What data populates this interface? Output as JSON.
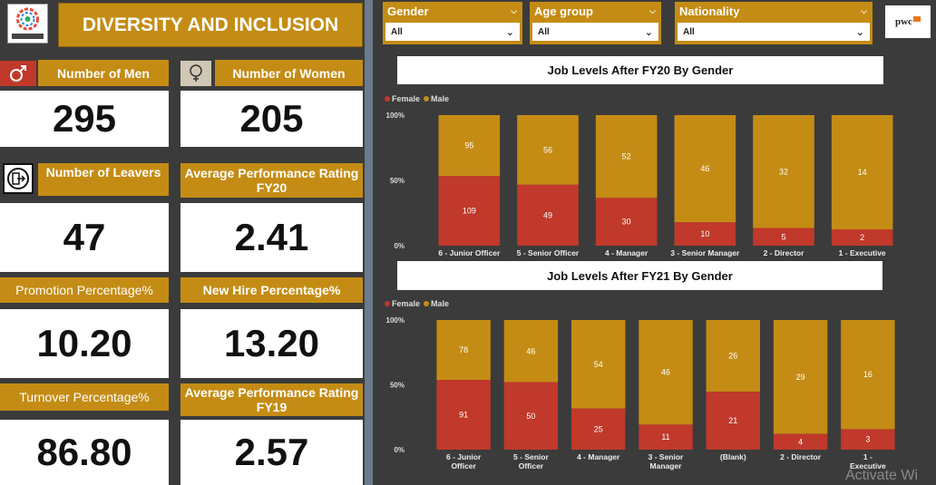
{
  "header": {
    "title": "DIVERSITY AND INCLUSION",
    "brand_logo": "pwc"
  },
  "kpis": {
    "men": {
      "label": "Number of Men",
      "value": "295",
      "icon": "male-symbol-icon"
    },
    "women": {
      "label": "Number of Women",
      "value": "205",
      "icon": "female-symbol-icon"
    },
    "leavers": {
      "label": "Number of Leavers",
      "value": "47",
      "icon": "exit-icon"
    },
    "perf_fy20": {
      "label": "Average Performance Rating FY20",
      "value": "2.41"
    },
    "promotion": {
      "label": "Promotion Percentage%",
      "value": "10.20"
    },
    "new_hire": {
      "label": "New Hire Percentage%",
      "value": "13.20"
    },
    "turnover": {
      "label": "Turnover Percentage%",
      "value": "86.80"
    },
    "perf_fy19": {
      "label": "Average Performance Rating FY19",
      "value": "2.57"
    }
  },
  "filters": {
    "gender": {
      "label": "Gender",
      "value": "All"
    },
    "age_group": {
      "label": "Age group",
      "value": "All"
    },
    "nationality": {
      "label": "Nationality",
      "value": "All"
    }
  },
  "colors": {
    "female": "#c0392b",
    "male": "#c48c14",
    "accent": "#c48c14",
    "background": "#3b3b3b"
  },
  "legend": {
    "female": "Female",
    "male": "Male"
  },
  "watermark": "Activate Wi",
  "chart_data": [
    {
      "type": "bar",
      "stacked": "100%",
      "title": "Job Levels After FY20 By Gender",
      "categories": [
        "6 - Junior Officer",
        "5 - Senior Officer",
        "4 - Manager",
        "3 - Senior Manager",
        "2 - Director",
        "1 - Executive"
      ],
      "series": [
        {
          "name": "Female",
          "values": [
            109,
            49,
            30,
            10,
            5,
            2
          ]
        },
        {
          "name": "Male",
          "values": [
            95,
            56,
            52,
            46,
            32,
            14
          ]
        }
      ],
      "y_ticks": [
        "0%",
        "50%",
        "100%"
      ],
      "ylim": [
        0,
        100
      ],
      "legend_position": "top-left"
    },
    {
      "type": "bar",
      "stacked": "100%",
      "title": "Job Levels After FY21 By Gender",
      "categories": [
        "6 - Junior Officer",
        "5 - Senior Officer",
        "4 - Manager",
        "3 - Senior Manager",
        "(Blank)",
        "2 - Director",
        "1 - Executive"
      ],
      "series": [
        {
          "name": "Female",
          "values": [
            91,
            50,
            25,
            11,
            21,
            4,
            3
          ]
        },
        {
          "name": "Male",
          "values": [
            78,
            46,
            54,
            46,
            26,
            29,
            16
          ]
        }
      ],
      "y_ticks": [
        "0%",
        "50%",
        "100%"
      ],
      "ylim": [
        0,
        100
      ],
      "legend_position": "top-left"
    }
  ]
}
